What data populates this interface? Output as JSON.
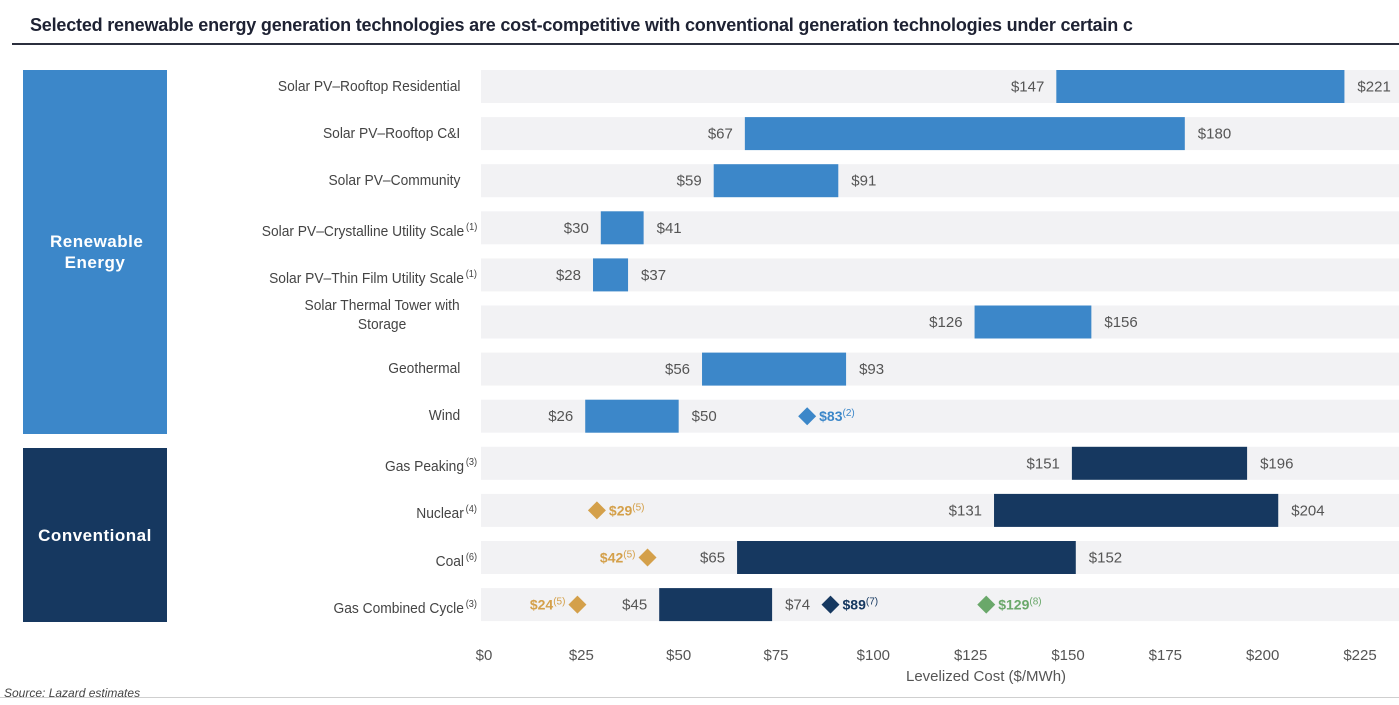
{
  "title": "Selected renewable energy generation technologies are cost-competitive with conventional generation technologies under certain c",
  "groups": {
    "renewable": "Renewable Energy",
    "conventional": "Conventional"
  },
  "source": "Source: Lazard estimates",
  "colors": {
    "renewable_bar": "#3c87c9",
    "conventional_bar": "#163860",
    "row_band": "#f2f2f4",
    "marker_gold": "#d4a04a",
    "marker_green": "#6aa86a",
    "marker_blue": "#3c87c9",
    "marker_navy": "#163860"
  },
  "chart_data": {
    "type": "bar",
    "subtype": "floating-range-horizontal",
    "title": "Selected renewable energy generation technologies are cost-competitive with conventional generation technologies under certain c",
    "xlabel": "Levelized Cost ($/MWh)",
    "ylabel": "",
    "xlim": [
      0,
      225
    ],
    "xticks": [
      0,
      25,
      50,
      75,
      100,
      125,
      150,
      175,
      200,
      225
    ],
    "xtick_labels": [
      "$0",
      "$25",
      "$50",
      "$75",
      "$100",
      "$125",
      "$150",
      "$175",
      "$200",
      "$225"
    ],
    "grid": false,
    "legend": "none",
    "categories": [
      {
        "label": "Solar PV–Rooftop Residential",
        "note": "",
        "group": "renewable",
        "low": 147,
        "high": 221,
        "markers": []
      },
      {
        "label": "Solar PV–Rooftop C&I",
        "note": "",
        "group": "renewable",
        "low": 67,
        "high": 180,
        "markers": []
      },
      {
        "label": "Solar PV–Community",
        "note": "",
        "group": "renewable",
        "low": 59,
        "high": 91,
        "markers": []
      },
      {
        "label": "Solar PV–Crystalline Utility Scale",
        "note": "(1)",
        "group": "renewable",
        "low": 30,
        "high": 41,
        "markers": []
      },
      {
        "label": "Solar PV–Thin Film Utility Scale",
        "note": "(1)",
        "group": "renewable",
        "low": 28,
        "high": 37,
        "markers": []
      },
      {
        "label": "Solar Thermal Tower with Storage",
        "note": "",
        "group": "renewable",
        "low": 126,
        "high": 156,
        "markers": []
      },
      {
        "label": "Geothermal",
        "note": "",
        "group": "renewable",
        "low": 56,
        "high": 93,
        "markers": []
      },
      {
        "label": "Wind",
        "note": "",
        "group": "renewable",
        "low": 26,
        "high": 50,
        "markers": [
          {
            "value": 83,
            "label": "$83",
            "note": "(2)",
            "color": "blue",
            "side": "right"
          }
        ]
      },
      {
        "label": "Gas Peaking",
        "note": "(3)",
        "group": "conventional",
        "low": 151,
        "high": 196,
        "markers": []
      },
      {
        "label": "Nuclear",
        "note": "(4)",
        "group": "conventional",
        "low": 131,
        "high": 204,
        "markers": [
          {
            "value": 29,
            "label": "$29",
            "note": "(5)",
            "color": "gold",
            "side": "right"
          }
        ]
      },
      {
        "label": "Coal",
        "note": "(6)",
        "group": "conventional",
        "low": 65,
        "high": 152,
        "markers": [
          {
            "value": 42,
            "label": "$42",
            "note": "(5)",
            "color": "gold",
            "side": "left"
          }
        ]
      },
      {
        "label": "Gas Combined Cycle",
        "note": "(3)",
        "group": "conventional",
        "low": 45,
        "high": 74,
        "markers": [
          {
            "value": 24,
            "label": "$24",
            "note": "(5)",
            "color": "gold",
            "side": "left"
          },
          {
            "value": 89,
            "label": "$89",
            "note": "(7)",
            "color": "navy",
            "side": "right"
          },
          {
            "value": 129,
            "label": "$129",
            "note": "(8)",
            "color": "green",
            "side": "right"
          }
        ]
      }
    ]
  }
}
